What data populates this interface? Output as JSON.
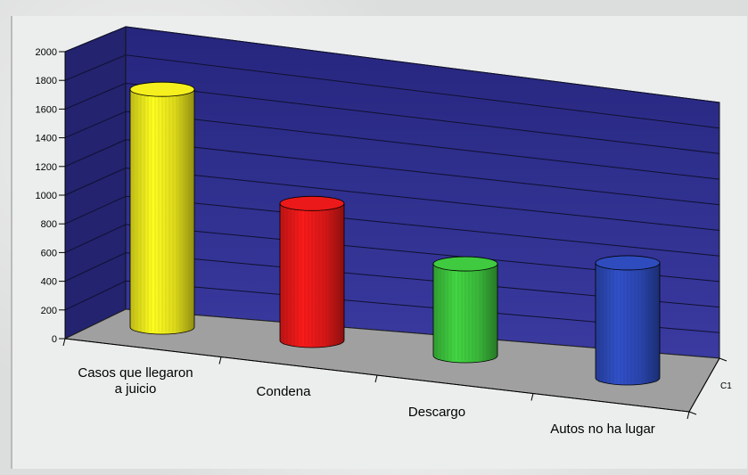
{
  "chart_data": {
    "type": "bar",
    "style": "3d-cylinder",
    "categories": [
      "Casos que llegaron a juicio",
      "Condena",
      "Descargo",
      "Autos no ha lugar"
    ],
    "category_lines": [
      [
        "Casos que llegaron",
        "a juicio"
      ],
      [
        "Condena"
      ],
      [
        "Descargo"
      ],
      [
        "Autos no ha lugar"
      ]
    ],
    "series": [
      {
        "name": "C1",
        "values": [
          1840,
          1060,
          710,
          890
        ]
      }
    ],
    "bar_colors": [
      "#e8e41c",
      "#e01818",
      "#3cc03c",
      "#2c48b4"
    ],
    "ylim": [
      0,
      2000
    ],
    "yticks": [
      "0",
      "200",
      "400",
      "600",
      "800",
      "1000",
      "1200",
      "1400",
      "1600",
      "1800",
      "2000"
    ],
    "title": "",
    "xlabel": "",
    "ylabel": "",
    "grid": true,
    "wall_color": "#2d2d8c",
    "floor_color": "#a0a0a0"
  }
}
